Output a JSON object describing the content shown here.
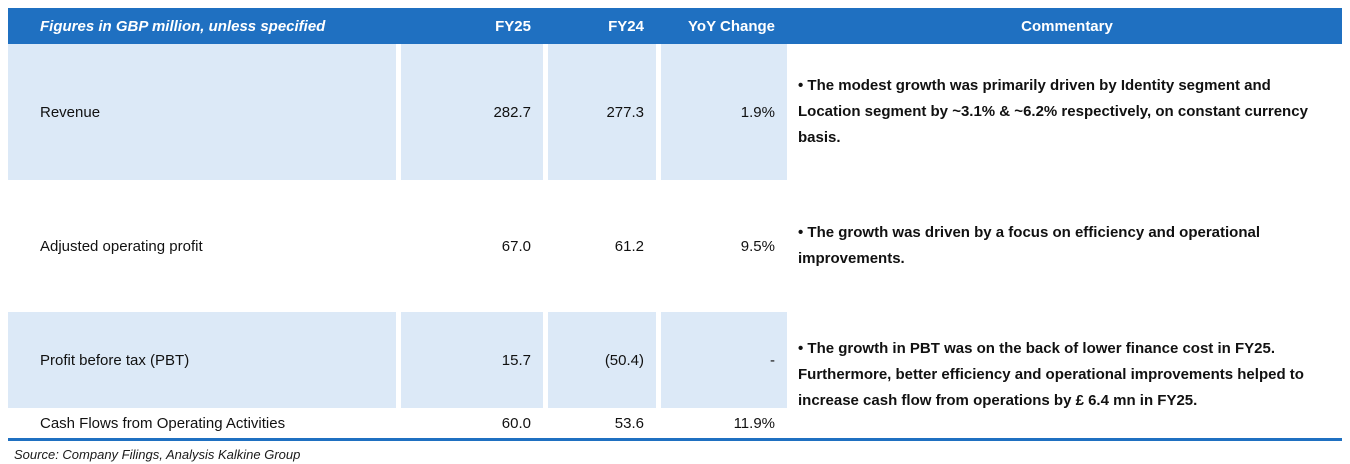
{
  "header": {
    "label": "Figures in GBP million, unless specified",
    "fy25": "FY25",
    "fy24": "FY24",
    "yoy": "YoY Change",
    "commentary": "Commentary"
  },
  "rows": [
    {
      "label": "Revenue",
      "fy25": "282.7",
      "fy24": "277.3",
      "yoy": "1.9%"
    },
    {
      "label": "Adjusted operating profit",
      "fy25": "67.0",
      "fy24": "61.2",
      "yoy": "9.5%"
    },
    {
      "label": "Profit before tax (PBT)",
      "fy25": "15.7",
      "fy24": "(50.4)",
      "yoy": "-"
    },
    {
      "label": "Cash Flows from Operating Activities",
      "fy25": "60.0",
      "fy24": "53.6",
      "yoy": "11.9%"
    }
  ],
  "commentaries": [
    {
      "text": "• The modest growth was primarily driven by Identity segment and Location segment by ~3.1% & ~6.2% respectively, on constant currency basis."
    },
    {
      "text": "• The growth was driven by a focus on efficiency and operational improvements."
    },
    {
      "text": "• The growth in PBT was on the back of lower finance cost in FY25. Furthermore, better efficiency and operational improvements helped to increase cash flow from operations by £ 6.4 mn in FY25."
    }
  ],
  "source": "Source: Company Filings, Analysis Kalkine Group",
  "colors": {
    "header_bg": "#1F70C1",
    "row_shade": "#DCE9F7",
    "border": "#1F70C1"
  }
}
